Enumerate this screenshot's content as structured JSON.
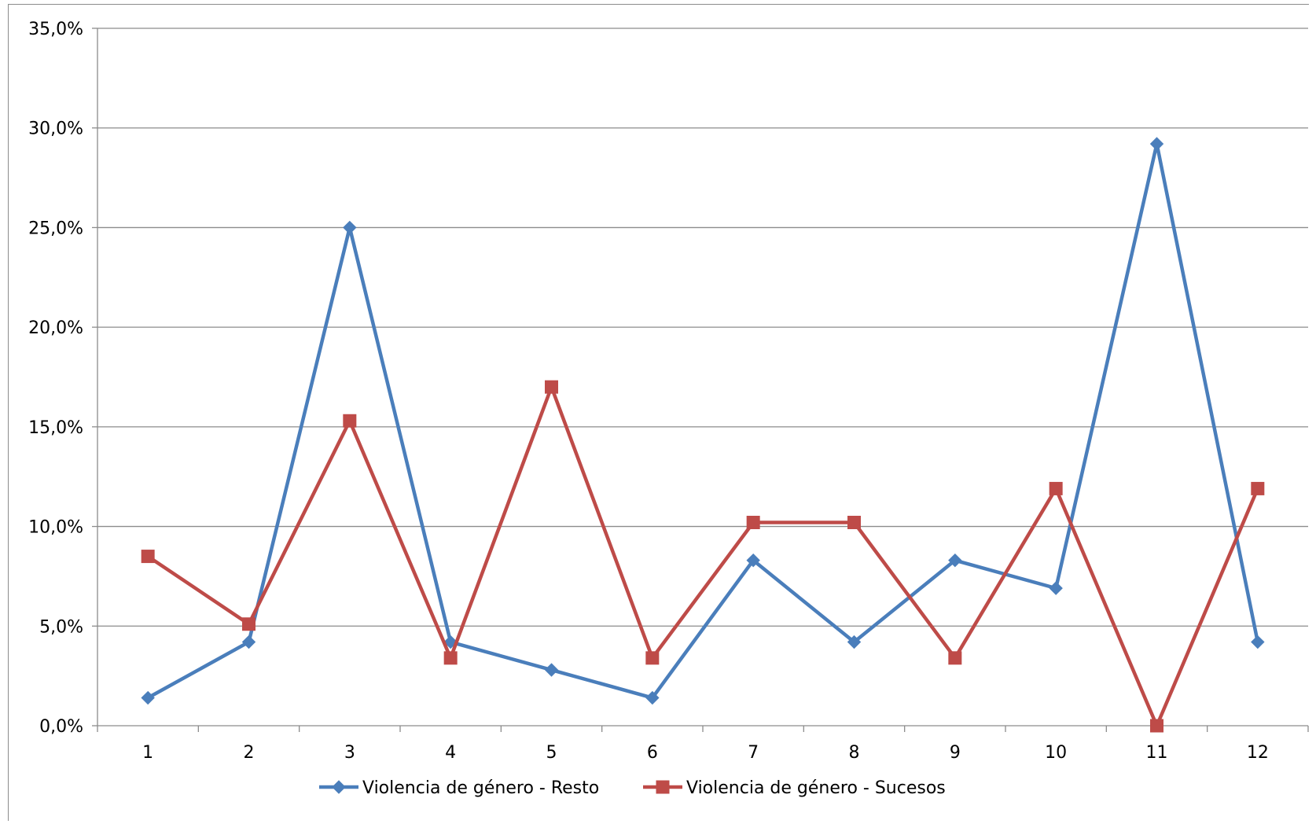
{
  "chart_data": {
    "type": "line",
    "categories": [
      "1",
      "2",
      "3",
      "4",
      "5",
      "6",
      "7",
      "8",
      "9",
      "10",
      "11",
      "12"
    ],
    "y_tick_labels": [
      "0,0%",
      "5,0%",
      "10,0%",
      "15,0%",
      "20,0%",
      "25,0%",
      "30,0%",
      "35,0%"
    ],
    "ylim": [
      0,
      35
    ],
    "grid": true,
    "legend_position": "bottom",
    "series": [
      {
        "name": "Violencia de género - Resto",
        "color": "#4a7ebb",
        "marker": "diamond",
        "values": [
          1.4,
          4.2,
          25.0,
          4.2,
          2.8,
          1.4,
          8.3,
          4.2,
          8.3,
          6.9,
          29.2,
          4.2
        ]
      },
      {
        "name": "Violencia de género - Sucesos",
        "color": "#be4b48",
        "marker": "square",
        "values": [
          8.5,
          5.1,
          15.3,
          3.4,
          17.0,
          3.4,
          10.2,
          10.2,
          3.4,
          11.9,
          0.0,
          11.9
        ]
      }
    ]
  }
}
